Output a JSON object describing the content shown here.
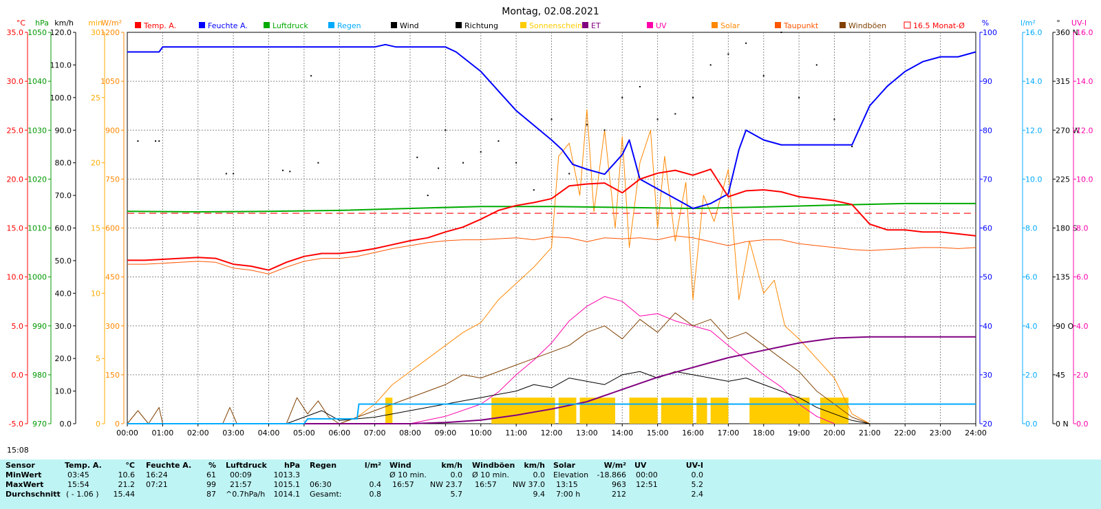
{
  "chart_data": {
    "type": "line",
    "title": "Montag, 02.08.2021",
    "x_ticks": [
      "00:00",
      "01:00",
      "02:00",
      "03:00",
      "04:00",
      "05:00",
      "06:00",
      "07:00",
      "08:00",
      "09:00",
      "10:00",
      "11:00",
      "12:00",
      "13:00",
      "14:00",
      "15:00",
      "16:00",
      "17:00",
      "18:00",
      "19:00",
      "20:00",
      "21:00",
      "22:00",
      "23:00",
      "24:00"
    ],
    "left_axes": [
      {
        "unit": "°C",
        "color": "#ff0000",
        "ticks": [
          "35.0",
          "30.0",
          "25.0",
          "20.0",
          "15.0",
          "10.0",
          "5.0",
          "0.0",
          "-5.0"
        ]
      },
      {
        "unit": "hPa",
        "color": "#009900",
        "ticks": [
          "1050",
          "1040",
          "1030",
          "1020",
          "1010",
          "1000",
          "990",
          "980",
          "970"
        ]
      },
      {
        "unit": "km/h",
        "color": "#000000",
        "ticks": [
          "120.0",
          "110.0",
          "100.0",
          "90.0",
          "80.0",
          "70.0",
          "60.0",
          "50.0",
          "40.0",
          "30.0",
          "20.0",
          "10.0",
          "0.0"
        ]
      },
      {
        "unit": "min",
        "color": "#ffaa00",
        "ticks": [
          "30",
          "25",
          "20",
          "15",
          "10",
          "5",
          "0"
        ]
      },
      {
        "unit": "W/m²",
        "color": "#ff8800",
        "ticks": [
          "1200",
          "1050",
          "900",
          "750",
          "600",
          "450",
          "300",
          "150",
          "0"
        ]
      }
    ],
    "right_axes": [
      {
        "unit": "%",
        "color": "#0000ff",
        "ticks": [
          "100",
          "90",
          "80",
          "70",
          "60",
          "50",
          "40",
          "30",
          "20"
        ]
      },
      {
        "unit": "l/m²",
        "color": "#00aaff",
        "ticks": [
          "16.0",
          "14.0",
          "12.0",
          "10.0",
          "8.0",
          "6.0",
          "4.0",
          "2.0",
          "0.0"
        ]
      },
      {
        "unit": "°",
        "color": "#000000",
        "ticks": [
          "360 N",
          "315",
          "270 W",
          "225",
          "180 S",
          "135",
          "90 O",
          "45",
          "0 N"
        ]
      },
      {
        "unit": "UV-I",
        "color": "#ff00aa",
        "ticks": [
          "16.0",
          "14.0",
          "12.0",
          "10.0",
          "8.0",
          "6.0",
          "4.0",
          "2.0",
          "0.0"
        ]
      }
    ],
    "legend": [
      {
        "label": "Temp. A.",
        "color": "#ff0000"
      },
      {
        "label": "Feuchte A.",
        "color": "#0000ff"
      },
      {
        "label": "Luftdruck",
        "color": "#00aa00"
      },
      {
        "label": "Regen",
        "color": "#00aaff"
      },
      {
        "label": "Wind",
        "color": "#000000"
      },
      {
        "label": "Richtung",
        "color": "#000000"
      },
      {
        "label": "Sonnenschein",
        "color": "#ffcc00"
      },
      {
        "label": "ET",
        "color": "#800080"
      },
      {
        "label": "UV",
        "color": "#ff00aa"
      },
      {
        "label": "Solar",
        "color": "#ff8800"
      },
      {
        "label": "Taupunkt",
        "color": "#ff5500"
      },
      {
        "label": "Windböen",
        "color": "#804000"
      },
      {
        "label": "16.5 Monat-Ø",
        "color": "#ff0000"
      }
    ],
    "series": [
      {
        "name": "Temp. A.",
        "axis": "°C",
        "color": "#ff0000",
        "width": 2,
        "x": [
          0,
          0.5,
          1,
          1.5,
          2,
          2.5,
          3,
          3.5,
          4,
          4.5,
          5,
          5.5,
          6,
          6.5,
          7,
          7.5,
          8,
          8.5,
          9,
          9.5,
          10,
          10.5,
          11,
          11.5,
          12,
          12.5,
          13,
          13.5,
          14,
          14.5,
          15,
          15.5,
          16,
          16.5,
          17,
          17.5,
          18,
          18.5,
          19,
          19.5,
          20,
          20.5,
          21,
          21.5,
          22,
          22.5,
          23,
          23.5,
          24
        ],
        "y": [
          11.7,
          11.7,
          11.8,
          11.9,
          12.0,
          11.9,
          11.3,
          11.1,
          10.7,
          11.5,
          12.1,
          12.4,
          12.4,
          12.6,
          12.9,
          13.3,
          13.7,
          14.0,
          14.6,
          15.1,
          15.9,
          16.8,
          17.3,
          17.6,
          18.0,
          19.3,
          19.5,
          19.6,
          18.6,
          20.0,
          20.6,
          20.9,
          20.4,
          21.0,
          18.2,
          18.8,
          18.9,
          18.7,
          18.2,
          18.0,
          17.8,
          17.4,
          15.4,
          14.8,
          14.8,
          14.6,
          14.6,
          14.4,
          14.2
        ]
      },
      {
        "name": "Taupunkt",
        "axis": "°C",
        "color": "#ff5500",
        "width": 1,
        "x": [
          0,
          0.5,
          1,
          1.5,
          2,
          2.5,
          3,
          3.5,
          4,
          4.5,
          5,
          5.5,
          6,
          6.5,
          7,
          7.5,
          8,
          8.5,
          9,
          9.5,
          10,
          10.5,
          11,
          11.5,
          12,
          12.5,
          13,
          13.5,
          14,
          14.5,
          15,
          15.5,
          16,
          16.5,
          17,
          17.5,
          18,
          18.5,
          19,
          19.5,
          20,
          20.5,
          21,
          21.5,
          22,
          22.5,
          23,
          23.5,
          24
        ],
        "y": [
          11.3,
          11.3,
          11.4,
          11.5,
          11.6,
          11.5,
          10.9,
          10.7,
          10.3,
          11.0,
          11.6,
          11.9,
          11.9,
          12.1,
          12.5,
          12.9,
          13.2,
          13.5,
          13.7,
          13.8,
          13.8,
          13.9,
          14.0,
          13.8,
          14.1,
          14.0,
          13.6,
          14.0,
          13.9,
          14.0,
          13.8,
          14.2,
          14.0,
          13.6,
          13.2,
          13.6,
          13.8,
          13.8,
          13.4,
          13.2,
          13.0,
          12.8,
          12.7,
          12.8,
          12.9,
          13.0,
          13.0,
          12.9,
          13.0
        ]
      },
      {
        "name": "Feuchte A.",
        "axis": "%",
        "color": "#0000ff",
        "width": 2,
        "x": [
          0,
          0.5,
          0.9,
          1,
          1.5,
          2,
          3,
          4,
          5,
          6,
          7,
          7.3,
          7.6,
          8,
          8.5,
          9,
          9.3,
          10,
          10.5,
          11,
          11.5,
          12,
          12.3,
          12.6,
          13,
          13.5,
          14,
          14.2,
          14.5,
          15,
          15.5,
          16,
          16.5,
          17,
          17.3,
          17.5,
          18,
          18.5,
          19,
          19.5,
          20,
          20.5,
          21,
          21.5,
          22,
          22.5,
          23,
          23.5,
          24
        ],
        "y": [
          96,
          96,
          96,
          97,
          97,
          97,
          97,
          97,
          97,
          97,
          97,
          97.5,
          97,
          97,
          97,
          97,
          96,
          92,
          88,
          84,
          81,
          78,
          76,
          73,
          72,
          71,
          75,
          78,
          70,
          68,
          66,
          64,
          65,
          67,
          76,
          80,
          78,
          77,
          77,
          77,
          77,
          77,
          85,
          89,
          92,
          94,
          95,
          95,
          96
        ]
      },
      {
        "name": "Luftdruck",
        "axis": "hPa",
        "color": "#00aa00",
        "width": 2,
        "x": [
          0,
          2,
          4,
          6,
          8,
          10,
          12,
          14,
          16,
          18,
          20,
          22,
          24
        ],
        "y": [
          1013.4,
          1013.3,
          1013.4,
          1013.6,
          1014.0,
          1014.4,
          1014.4,
          1014.2,
          1014.0,
          1014.3,
          1014.7,
          1015.0,
          1015.0
        ]
      },
      {
        "name": "ET",
        "axis": "l/m²",
        "color": "#800080",
        "width": 2,
        "x": [
          0,
          8,
          9,
          10,
          11,
          12,
          13,
          14,
          15,
          16,
          17,
          18,
          19,
          20,
          21,
          24
        ],
        "y": [
          0,
          0,
          0.05,
          0.15,
          0.35,
          0.6,
          0.9,
          1.4,
          1.9,
          2.3,
          2.7,
          3.0,
          3.3,
          3.5,
          3.55,
          3.55
        ]
      },
      {
        "name": "Regen",
        "axis": "l/m²",
        "color": "#00aaff",
        "width": 2,
        "x": [
          0,
          5,
          5.1,
          6.5,
          6.55,
          7,
          24
        ],
        "y": [
          0,
          0,
          0.2,
          0.2,
          0.8,
          0.8,
          0.8
        ]
      },
      {
        "name": "Solar",
        "axis": "W/m²",
        "color": "#ff8800",
        "width": 1,
        "x": [
          0,
          6,
          6.5,
          7,
          7.5,
          8,
          8.5,
          9,
          9.5,
          10,
          10.5,
          11,
          11.5,
          12,
          12.2,
          12.5,
          12.8,
          13,
          13.2,
          13.5,
          13.8,
          14,
          14.2,
          14.5,
          14.8,
          15,
          15.2,
          15.5,
          15.8,
          16,
          16.3,
          16.6,
          17,
          17.3,
          17.6,
          18,
          18.3,
          18.6,
          19,
          19.5,
          20,
          20.5,
          21
        ],
        "y": [
          0,
          0,
          20,
          60,
          120,
          160,
          200,
          240,
          280,
          310,
          380,
          430,
          480,
          540,
          820,
          860,
          700,
          963,
          650,
          900,
          600,
          880,
          540,
          800,
          900,
          600,
          820,
          560,
          740,
          380,
          700,
          620,
          780,
          380,
          560,
          400,
          440,
          300,
          260,
          200,
          140,
          30,
          0
        ]
      },
      {
        "name": "UV",
        "axis": "UV-I",
        "color": "#ff00aa",
        "width": 1,
        "x": [
          0,
          8,
          9,
          10,
          10.5,
          11,
          11.5,
          12,
          12.5,
          13,
          13.5,
          14,
          14.5,
          15,
          15.5,
          16,
          16.5,
          17,
          17.5,
          18,
          18.5,
          19,
          19.5,
          20
        ],
        "y": [
          0,
          0,
          0.3,
          0.8,
          1.3,
          2.0,
          2.6,
          3.3,
          4.2,
          4.8,
          5.2,
          5.0,
          4.4,
          4.5,
          4.2,
          4.0,
          3.8,
          3.2,
          2.6,
          2.0,
          1.5,
          0.8,
          0.3,
          0
        ]
      },
      {
        "name": "Windböen",
        "axis": "km/h",
        "color": "#804000",
        "width": 1,
        "x": [
          0,
          0.3,
          0.6,
          0.9,
          1,
          2.7,
          2.9,
          3.1,
          4.5,
          4.8,
          5.1,
          5.4,
          5.7,
          6,
          7,
          7.5,
          8,
          8.5,
          9,
          9.5,
          10,
          10.5,
          11,
          11.5,
          12,
          12.5,
          13,
          13.5,
          14,
          14.5,
          15,
          15.5,
          16,
          16.5,
          17,
          17.5,
          18,
          18.5,
          19,
          19.5,
          20,
          20.5,
          21
        ],
        "y": [
          0,
          4,
          0,
          5,
          0,
          0,
          5,
          0,
          0,
          8,
          3,
          7,
          2,
          0,
          4,
          6,
          8,
          10,
          12,
          15,
          14,
          16,
          18,
          20,
          22,
          24,
          28,
          30,
          26,
          32,
          28,
          34,
          30,
          32,
          26,
          28,
          24,
          20,
          16,
          10,
          6,
          2,
          0
        ]
      },
      {
        "name": "Wind",
        "axis": "km/h",
        "color": "#000000",
        "width": 1,
        "x": [
          0,
          4.5,
          5,
          5.5,
          6,
          7,
          7.5,
          8,
          8.5,
          9,
          9.5,
          10,
          10.5,
          11,
          11.5,
          12,
          12.5,
          13,
          13.5,
          14,
          14.5,
          15,
          15.5,
          16,
          16.5,
          17,
          17.5,
          18,
          18.5,
          19,
          19.5,
          20,
          20.5,
          21
        ],
        "y": [
          0,
          0,
          2,
          4,
          1,
          2,
          3,
          4,
          5,
          6,
          7,
          8,
          9,
          10,
          12,
          11,
          14,
          13,
          12,
          15,
          16,
          14,
          16,
          15,
          14,
          13,
          14,
          12,
          10,
          8,
          5,
          3,
          1,
          0
        ]
      }
    ],
    "monthly_avg": {
      "label": "16.5 Monat-Ø",
      "axis": "°C",
      "value": 16.5
    },
    "sunshine": {
      "label": "Sonnenschein",
      "color": "#ffcc00",
      "axis": "min",
      "level_min": 2,
      "intervals": [
        [
          7.3,
          7.5
        ],
        [
          10.3,
          12.1
        ],
        [
          12.2,
          12.7
        ],
        [
          12.8,
          13.8
        ],
        [
          14.2,
          15.0
        ],
        [
          15.1,
          16.0
        ],
        [
          16.1,
          16.4
        ],
        [
          16.5,
          17.0
        ],
        [
          17.6,
          19.3
        ],
        [
          19.6,
          20.4
        ]
      ]
    },
    "direction": {
      "label": "Richtung",
      "axis": "°",
      "x": [
        0.3,
        0.8,
        0.9,
        2.8,
        3.0,
        4.4,
        4.6,
        5.2,
        5.4,
        8.2,
        8.5,
        8.8,
        9.0,
        9.5,
        10.0,
        10.5,
        11.0,
        11.5,
        12.0,
        12.5,
        13.0,
        13.5,
        14.0,
        14.5,
        15.0,
        15.5,
        16.0,
        16.5,
        17.0,
        17.5,
        18.0,
        18.5,
        19.0,
        19.5,
        20.0,
        20.5
      ],
      "y": [
        260,
        260,
        260,
        230,
        230,
        233,
        232,
        320,
        240,
        245,
        210,
        235,
        270,
        240,
        250,
        260,
        240,
        215,
        280,
        230,
        275,
        270,
        300,
        310,
        280,
        285,
        300,
        330,
        340,
        350,
        320,
        360,
        300,
        330,
        280,
        255
      ]
    },
    "now_marker": "15:08",
    "summary": {
      "row_labels": [
        "Sensor",
        "MinWert",
        "MaxWert",
        "Durchschnitt"
      ],
      "temp": {
        "head": "Temp. A.",
        "unit": "°C",
        "min_t": "03:45",
        "min": "10.6",
        "max_t": "15:54",
        "max": "21.2",
        "avg_note": "( - 1.06 )",
        "avg": "15.44"
      },
      "hum": {
        "head": "Feuchte A.",
        "unit": "%",
        "min_t": "16:24",
        "min": "61",
        "max_t": "07:21",
        "max": "99",
        "avg": "87"
      },
      "press": {
        "head": "Luftdruck",
        "unit": "hPa",
        "min_t": "00:09",
        "min": "1013.3",
        "max_t": "21:57",
        "max": "1015.1",
        "avg_note": "^0.7hPa/h",
        "avg": "1014.1"
      },
      "rain": {
        "head": "Regen",
        "unit": "l/m²",
        "max_t": "06:30",
        "max": "0.4",
        "avg_note": "Gesamt:",
        "avg": "0.8"
      },
      "wind": {
        "head": "Wind",
        "unit": "km/h",
        "min_t": "Ø 10 min.",
        "min": "0.0",
        "max_t": "16:57",
        "max": "NW 23.7",
        "avg": "5.7"
      },
      "gust": {
        "head": "Windböen",
        "unit": "km/h",
        "min_t": "Ø 10 min.",
        "min": "0.0",
        "max_t": "16:57",
        "max": "NW 37.0",
        "avg": "9.4"
      },
      "solar": {
        "head": "Solar",
        "unit": "W/m²",
        "min_t": "Elevation",
        "min": "-18.866",
        "max_t": "13:15",
        "max": "963",
        "avg_note": "7:00 h",
        "avg": "212"
      },
      "uv": {
        "head": "UV",
        "unit": "UV-I",
        "min_t": "00:00",
        "min": "0.0",
        "max_t": "12:51",
        "max": "5.2",
        "avg": "2.4"
      }
    }
  }
}
